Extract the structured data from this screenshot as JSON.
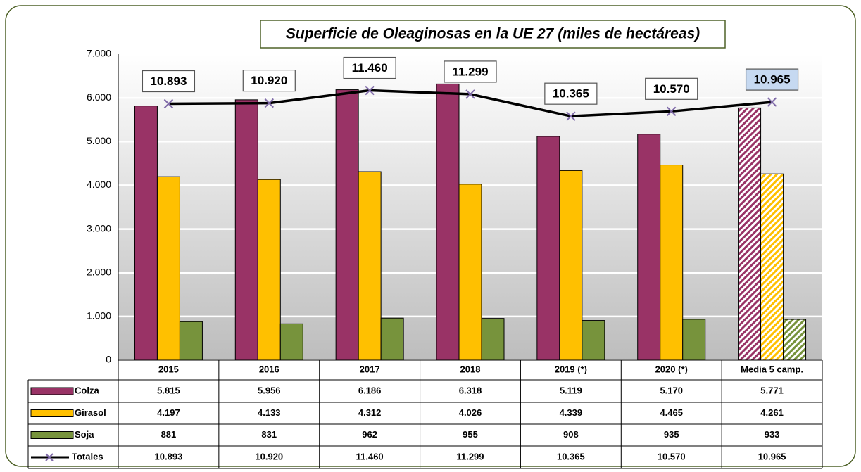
{
  "chart_data": {
    "type": "bar",
    "title": "Superficie de Oleaginosas en la UE 27 (miles de hectáreas)",
    "categories": [
      "2015",
      "2016",
      "2017",
      "2018",
      "2019 (*)",
      "2020 (*)",
      "Media 5 camp."
    ],
    "hatched": [
      false,
      false,
      false,
      false,
      false,
      false,
      true
    ],
    "series": [
      {
        "name": "Colza",
        "color": "#993366",
        "values": [
          5815,
          5956,
          6186,
          6318,
          5119,
          5170,
          5771
        ],
        "value_labels": [
          "5.815",
          "5.956",
          "6.186",
          "6.318",
          "5.119",
          "5.170",
          "5.771"
        ]
      },
      {
        "name": "Girasol",
        "color": "#ffc000",
        "values": [
          4197,
          4133,
          4312,
          4026,
          4339,
          4465,
          4261
        ],
        "value_labels": [
          "4.197",
          "4.133",
          "4.312",
          "4.026",
          "4.339",
          "4.465",
          "4.261"
        ]
      },
      {
        "name": "Soja",
        "color": "#77933c",
        "values": [
          881,
          831,
          962,
          955,
          908,
          935,
          933
        ]
      },
      {
        "name": "Totales",
        "type": "line",
        "axis": "y2",
        "color": "#000000",
        "marker_color": "#7f6aa8",
        "values": [
          10893,
          10920,
          11460,
          11299,
          10365,
          10570,
          10965
        ],
        "value_labels": [
          "10.893",
          "10.920",
          "11.460",
          "11.299",
          "10.365",
          "10.570",
          "10.965"
        ]
      }
    ],
    "ylim": [
      0,
      7000
    ],
    "yticks": [
      0,
      {
        "value": 1000,
        "label": "1.000"
      },
      {
        "value": 2000,
        "label": "2.000"
      },
      {
        "value": 3000,
        "label": "3.000"
      },
      {
        "value": 4000,
        "label": "4.000"
      },
      {
        "value": 5000,
        "label": "5.000"
      },
      {
        "value": 6000,
        "label": "6.000"
      },
      {
        "value": 7000,
        "label": "7.000"
      }
    ],
    "y2lim": [
      0,
      13000
    ],
    "grid": true
  }
}
